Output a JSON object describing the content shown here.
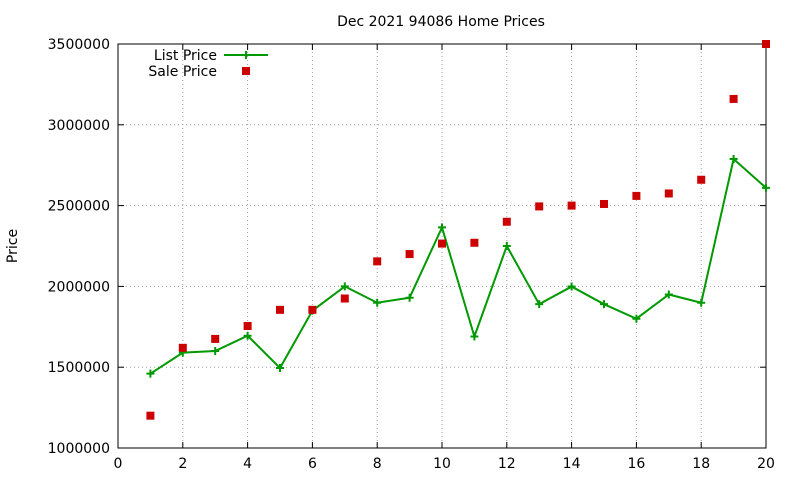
{
  "chart_data": {
    "type": "line",
    "title": "Dec 2021 94086 Home Prices",
    "xlabel": "",
    "ylabel": "Price",
    "xlim": [
      0,
      20
    ],
    "ylim": [
      1000000,
      3500000
    ],
    "x_ticks": [
      "0",
      "2",
      "4",
      "6",
      "8",
      "10",
      "12",
      "14",
      "16",
      "18",
      "20"
    ],
    "y_ticks": [
      "1000000",
      "1500000",
      "2000000",
      "2500000",
      "3000000",
      "3500000"
    ],
    "grid": true,
    "legend_position": "top-left",
    "x": [
      1,
      2,
      3,
      4,
      5,
      6,
      7,
      8,
      9,
      10,
      11,
      12,
      13,
      14,
      15,
      16,
      17,
      18,
      19,
      20
    ],
    "series": [
      {
        "name": "List Price",
        "style": "line-points",
        "marker": "plus",
        "color": "#009900",
        "values": [
          1460000,
          1590000,
          1600000,
          1695000,
          1495000,
          1850000,
          2000000,
          1899000,
          1930000,
          2365000,
          1690000,
          2250000,
          1890000,
          1999000,
          1890000,
          1800000,
          1950000,
          1899000,
          2788000,
          2610000
        ]
      },
      {
        "name": "Sale Price",
        "style": "points",
        "marker": "square",
        "color": "#cc0000",
        "values": [
          1200000,
          1620000,
          1675000,
          1755000,
          1855000,
          1855000,
          1925000,
          2155000,
          2200000,
          2265000,
          2270000,
          2400000,
          2495000,
          2500000,
          2510000,
          2560000,
          2575000,
          2660000,
          3160000,
          3500000
        ]
      }
    ]
  }
}
